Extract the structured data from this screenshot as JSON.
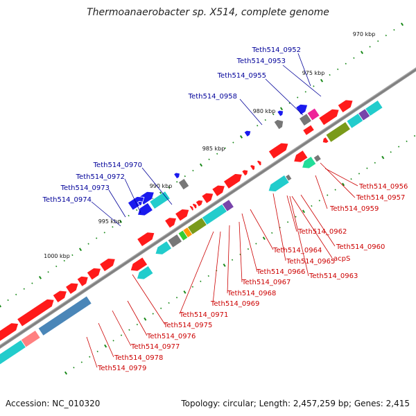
{
  "title": "Thermoanaerobacter sp. X514, complete genome",
  "footer": {
    "accession": "Accession: NC_010320",
    "summary": "Topology: circular; Length: 2,457,259 bp; Genes: 2,415"
  },
  "kbp_marks": [
    "970 kbp",
    "975 kbp",
    "980 kbp",
    "985 kbp",
    "990 kbp",
    "995 kbp",
    "1000 kbp"
  ],
  "labels_top": [
    "Teth514_0952",
    "Teth514_0953",
    "Teth514_0955",
    "Teth514_0958",
    "Teth514_0970",
    "Teth514_0972",
    "Teth514_0973",
    "Teth514_0974"
  ],
  "labels_bottom": [
    "Teth514_0956",
    "Teth514_0957",
    "Teth514_0959",
    "Teth514_0962",
    "Teth514_0960",
    "acpS",
    "Teth514_0963",
    "Teth514_0964",
    "Teth514_0965",
    "Teth514_0966",
    "Teth514_0967",
    "Teth514_0968",
    "Teth514_0969",
    "Teth514_0971",
    "Teth514_0975",
    "Teth514_0976",
    "Teth514_0977",
    "Teth514_0978",
    "Teth514_0979"
  ],
  "colors": {
    "backbone": "#888888",
    "cds": "#ff1a1a",
    "cds_light": "#ff8080",
    "cyan": "#22cccc",
    "steelblue": "#4a86b8",
    "blue": "#1a1aee",
    "gray": "#777777",
    "olive": "#7a9a1a",
    "green": "#33cc33",
    "orange": "#ff9900",
    "purple": "#7744aa",
    "pink": "#ee2299",
    "teal": "#22dd99",
    "label_top": "#000099",
    "label_bottom": "#cc0000",
    "tick": "#1a8a1a"
  }
}
